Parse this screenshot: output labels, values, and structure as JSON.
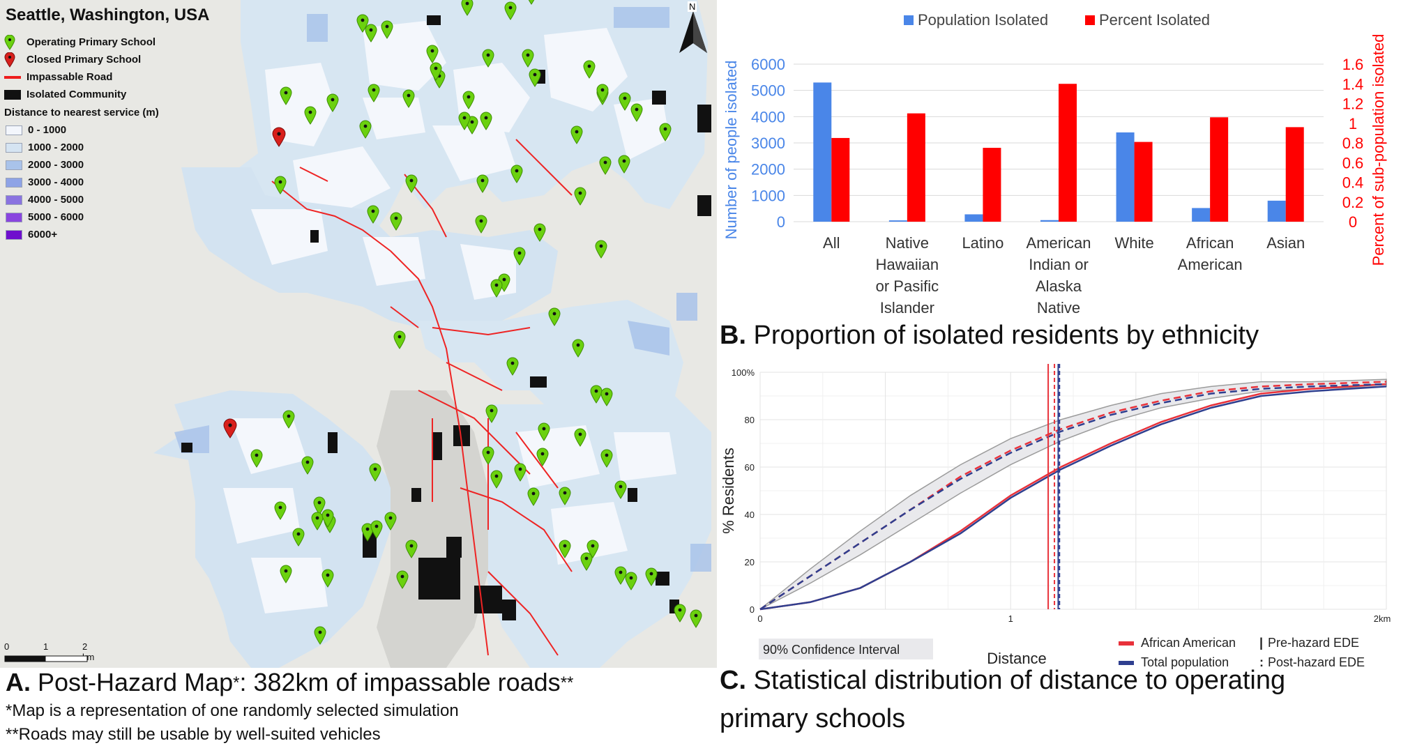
{
  "panel_a": {
    "map_title": "Seattle, Washington, USA",
    "legend": {
      "items": [
        {
          "label": "Operating Primary School",
          "icon": "green-map-pin-icon",
          "color": "#6bd10f"
        },
        {
          "label": "Closed Primary School",
          "icon": "red-map-pin-icon",
          "color": "#d8201c"
        },
        {
          "label": "Impassable Road",
          "icon": "red-line-icon",
          "color": "#ee1c1c"
        },
        {
          "label": "Isolated Community",
          "icon": "black-square-icon",
          "color": "#111111"
        }
      ],
      "distance_heading": "Distance to nearest service (m)",
      "distance_classes": [
        {
          "label": "0 - 1000",
          "color": "#f3f6fc"
        },
        {
          "label": "1000 - 2000",
          "color": "#d5e4f2"
        },
        {
          "label": "2000 - 3000",
          "color": "#a9c3ea"
        },
        {
          "label": "3000 - 4000",
          "color": "#8ea3e6"
        },
        {
          "label": "4000 - 5000",
          "color": "#8a73e0"
        },
        {
          "label": "5000 - 6000",
          "color": "#8a45df"
        },
        {
          "label": "6000+",
          "color": "#6f0fcd"
        }
      ]
    },
    "scale_labels": [
      "0",
      "1",
      "2 km"
    ],
    "north_label": "N",
    "caption_letter": "A.",
    "caption_main": " Post-Hazard Map",
    "caption_mark1": "*",
    "caption_rest": ": 382km of impassable roads",
    "caption_mark2": "**",
    "note1": "*Map is a representation of one randomly selected simulation",
    "note2": "**Roads may still be usable by well-suited vehicles"
  },
  "panel_b": {
    "caption_letter": "B.",
    "caption_text": " Proportion of isolated residents by ethnicity"
  },
  "panel_c": {
    "caption_letter": "C.",
    "caption_line1": " Statistical distribution of distance to operating",
    "caption_line2": "primary schools"
  },
  "chart_data": [
    {
      "type": "bar",
      "categories": [
        [
          "All"
        ],
        [
          "Native",
          "Hawaiian",
          "or Pasific",
          "Islander"
        ],
        [
          "Latino"
        ],
        [
          "American",
          "Indian or",
          "Alaska",
          "Native"
        ],
        [
          "White"
        ],
        [
          "African",
          "American"
        ],
        [
          "Asian"
        ]
      ],
      "series": [
        {
          "name": "Population Isolated",
          "axis": "left",
          "color": "#4a86e8",
          "values": [
            5300,
            50,
            280,
            60,
            3400,
            520,
            800
          ]
        },
        {
          "name": "Percent Isolated",
          "axis": "right",
          "color": "#ff0000",
          "values": [
            0.85,
            1.1,
            0.75,
            1.4,
            0.81,
            1.06,
            0.96
          ]
        }
      ],
      "ylabel": "Number of people isolated",
      "y2label": "Percent of sub-population isolated",
      "ylim": [
        0,
        6000
      ],
      "y2lim": [
        0,
        1.6
      ],
      "yticks": [
        "0",
        "1000",
        "2000",
        "3000",
        "4000",
        "5000",
        "6000"
      ],
      "y2ticks": [
        "0",
        "0.2",
        "0.4",
        "0.6",
        "0.8",
        "1",
        "1.2",
        "1.4",
        "1.6"
      ],
      "legend": "top"
    },
    {
      "type": "line",
      "xlabel": "Distance",
      "ylabel": "% Residents",
      "xlim": [
        0,
        2.5
      ],
      "ylim": [
        0,
        100
      ],
      "xticks": [
        "0",
        "1",
        "2km"
      ],
      "yticks": [
        "0",
        "20",
        "40",
        "60",
        "80",
        "100%"
      ],
      "band_label": "90% Confidence Interval",
      "series": [
        {
          "name": "African American",
          "style": "solid",
          "color": "#e8313a",
          "x": [
            0,
            0.2,
            0.4,
            0.6,
            0.8,
            1.0,
            1.2,
            1.4,
            1.6,
            1.8,
            2.0,
            2.2,
            2.5
          ],
          "y": [
            0,
            3,
            9,
            20,
            33,
            48,
            60,
            70,
            79,
            86,
            91,
            93,
            95
          ]
        },
        {
          "name": "Total population",
          "style": "solid",
          "color": "#2f3f8f",
          "x": [
            0,
            0.2,
            0.4,
            0.6,
            0.8,
            1.0,
            1.2,
            1.4,
            1.6,
            1.8,
            2.0,
            2.2,
            2.5
          ],
          "y": [
            0,
            3,
            9,
            20,
            32,
            47,
            59,
            69,
            78,
            85,
            90,
            92,
            94
          ]
        },
        {
          "name": "African American (post-hazard)",
          "style": "dashed",
          "color": "#e8313a",
          "x": [
            0,
            0.2,
            0.4,
            0.6,
            0.8,
            1.0,
            1.2,
            1.4,
            1.6,
            1.8,
            2.0,
            2.2,
            2.5
          ],
          "y": [
            0,
            14,
            28,
            42,
            56,
            67,
            76,
            83,
            88,
            92,
            94,
            95,
            96
          ]
        },
        {
          "name": "Total population (post-hazard)",
          "style": "dashed",
          "color": "#2f3f8f",
          "x": [
            0,
            0.2,
            0.4,
            0.6,
            0.8,
            1.0,
            1.2,
            1.4,
            1.6,
            1.8,
            2.0,
            2.2,
            2.5
          ],
          "y": [
            0,
            14,
            28,
            42,
            55,
            66,
            75,
            82,
            87,
            91,
            93,
            94,
            95
          ]
        }
      ],
      "band": {
        "x": [
          0,
          0.2,
          0.4,
          0.6,
          0.8,
          1.0,
          1.2,
          1.4,
          1.6,
          1.8,
          2.0,
          2.2,
          2.5
        ],
        "upper": [
          0,
          17,
          33,
          48,
          61,
          72,
          80,
          86,
          91,
          94,
          96,
          96,
          97
        ],
        "lower": [
          0,
          11,
          23,
          36,
          49,
          61,
          71,
          79,
          85,
          89,
          92,
          93,
          94
        ]
      },
      "vlines": [
        {
          "x": 1.15,
          "style": "solid",
          "color": "#e8313a"
        },
        {
          "x": 1.19,
          "style": "solid",
          "color": "#2f3f8f"
        },
        {
          "x": 1.175,
          "style": "dashed",
          "color": "#e8313a"
        },
        {
          "x": 1.195,
          "style": "dashed",
          "color": "#2f3f8f"
        }
      ],
      "legend_entries": [
        {
          "label": "African American",
          "color": "#e8313a"
        },
        {
          "label": "Total population",
          "color": "#2f3f8f"
        },
        {
          "label": "Pre-hazard EDE",
          "marker": "|"
        },
        {
          "label": "Post-hazard EDE",
          "marker": ":"
        }
      ],
      "legend": "bottom-right"
    }
  ]
}
